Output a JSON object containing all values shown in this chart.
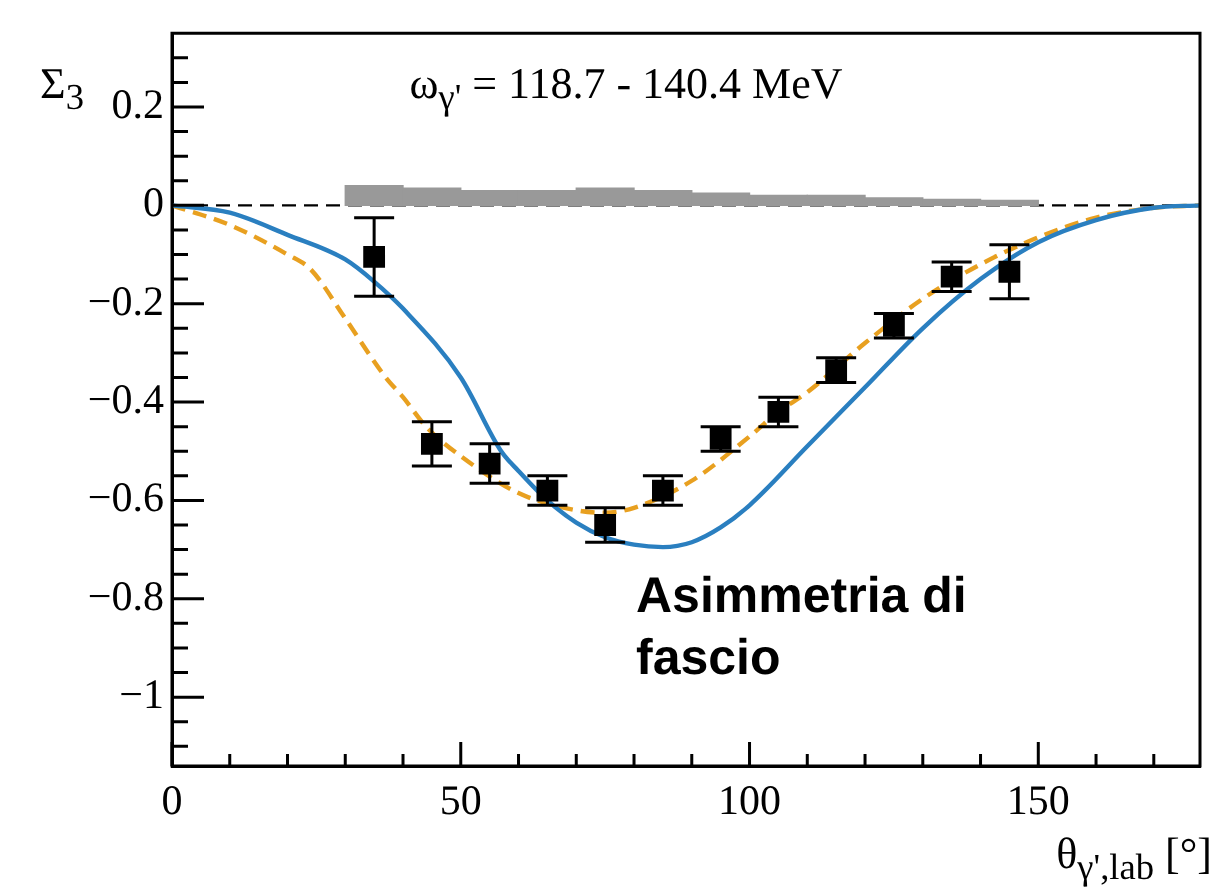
{
  "chart_data": {
    "type": "scatter",
    "title": "ω$_{γ'}$ = 118.7 - 140.4 MeV",
    "xlabel": "θ$_{γ',lab}$ [°]",
    "ylabel": "Σ$_{3}$",
    "annotations": [
      "Asimmetria di fascio"
    ],
    "xlim": [
      0,
      178
    ],
    "ylim": [
      -1.14,
      0.35
    ],
    "xticks": [
      0,
      {
        "value": 10,
        "label": null
      },
      {
        "value": 20,
        "label": null
      },
      {
        "value": 30,
        "label": null
      },
      {
        "value": 40,
        "label": null
      },
      50,
      {
        "value": 60,
        "label": null
      },
      {
        "value": 70,
        "label": null
      },
      {
        "value": 80,
        "label": null
      },
      {
        "value": 90,
        "label": null
      },
      100,
      {
        "value": 110,
        "label": null
      },
      {
        "value": 120,
        "label": null
      },
      {
        "value": 130,
        "label": null
      },
      {
        "value": 140,
        "label": null
      },
      150,
      {
        "value": 160,
        "label": null
      },
      {
        "value": 170,
        "label": null
      }
    ],
    "yticks": [
      {
        "value": -1.1,
        "label": null
      },
      {
        "value": -1.05,
        "label": null
      },
      {
        "value": -1,
        "label": "−1"
      },
      {
        "value": -0.95,
        "label": null
      },
      {
        "value": -0.9,
        "label": null
      },
      {
        "value": -0.85,
        "label": null
      },
      {
        "value": -0.8,
        "label": "−0.8"
      },
      {
        "value": -0.75,
        "label": null
      },
      {
        "value": -0.7,
        "label": null
      },
      {
        "value": -0.65,
        "label": null
      },
      {
        "value": -0.6,
        "label": "−0.6"
      },
      {
        "value": -0.55,
        "label": null
      },
      {
        "value": -0.5,
        "label": null
      },
      {
        "value": -0.45,
        "label": null
      },
      {
        "value": -0.4,
        "label": "−0.4"
      },
      {
        "value": -0.35,
        "label": null
      },
      {
        "value": -0.3,
        "label": null
      },
      {
        "value": -0.25,
        "label": null
      },
      {
        "value": -0.2,
        "label": "−0.2"
      },
      {
        "value": -0.15,
        "label": null
      },
      {
        "value": -0.1,
        "label": null
      },
      {
        "value": -0.05,
        "label": null
      },
      0,
      {
        "value": 0.05,
        "label": null
      },
      {
        "value": 0.1,
        "label": null
      },
      {
        "value": 0.15,
        "label": null
      },
      0.2,
      {
        "value": 0.25,
        "label": null
      },
      {
        "value": 0.3,
        "label": null
      }
    ],
    "grid": false,
    "legend": false,
    "ref_lines": [
      {
        "axis": "y",
        "value": 0,
        "color": "#000000",
        "line_style": "dashed"
      }
    ],
    "series": [
      {
        "type": "histogram",
        "bins": [
          30,
          40,
          50,
          60,
          70,
          80,
          90,
          100,
          110,
          120,
          130,
          140,
          150
        ],
        "values": [
          0.04,
          0.035,
          0.03,
          0.03,
          0.035,
          0.03,
          0.025,
          0.02,
          0.02,
          0.015,
          0.012,
          0.01
        ],
        "color": "#999999"
      },
      {
        "type": "line",
        "color": "#2a7fc0",
        "line_style": "solid",
        "marker": "none",
        "x": [
          0,
          10,
          20,
          30,
          35,
          40,
          50,
          57,
          60,
          65,
          70,
          75,
          80,
          85,
          90,
          95,
          100,
          110,
          120,
          130,
          140,
          150,
          160,
          170,
          178
        ],
        "values": [
          0,
          -0.015,
          -0.06,
          -0.11,
          -0.155,
          -0.21,
          -0.35,
          -0.5,
          -0.54,
          -0.6,
          -0.645,
          -0.675,
          -0.69,
          -0.695,
          -0.685,
          -0.655,
          -0.61,
          -0.49,
          -0.37,
          -0.25,
          -0.15,
          -0.075,
          -0.03,
          -0.005,
          0
        ]
      },
      {
        "type": "line",
        "color": "#e8a020",
        "line_style": "dashed",
        "marker": "none",
        "x": [
          0,
          10,
          20,
          24,
          30,
          37,
          40,
          44,
          50,
          60,
          70,
          75,
          80,
          90,
          100,
          105,
          110,
          120,
          130,
          140,
          150,
          160,
          170,
          178
        ],
        "values": [
          0,
          -0.04,
          -0.1,
          -0.13,
          -0.23,
          -0.35,
          -0.39,
          -0.45,
          -0.51,
          -0.585,
          -0.62,
          -0.625,
          -0.615,
          -0.56,
          -0.47,
          -0.42,
          -0.38,
          -0.28,
          -0.19,
          -0.12,
          -0.065,
          -0.025,
          -0.005,
          0
        ]
      },
      {
        "color": "#000000",
        "marker": "square",
        "x": [
          35,
          45,
          55,
          65,
          75,
          85,
          95,
          105,
          115,
          125,
          135,
          145
        ],
        "values": [
          -0.105,
          -0.485,
          -0.525,
          -0.58,
          -0.65,
          -0.58,
          -0.475,
          -0.42,
          -0.335,
          -0.245,
          -0.145,
          -0.135
        ],
        "errors": [
          0.08,
          0.045,
          0.04,
          0.03,
          0.035,
          0.03,
          0.025,
          0.03,
          0.025,
          0.025,
          0.03,
          0.055
        ]
      }
    ]
  }
}
